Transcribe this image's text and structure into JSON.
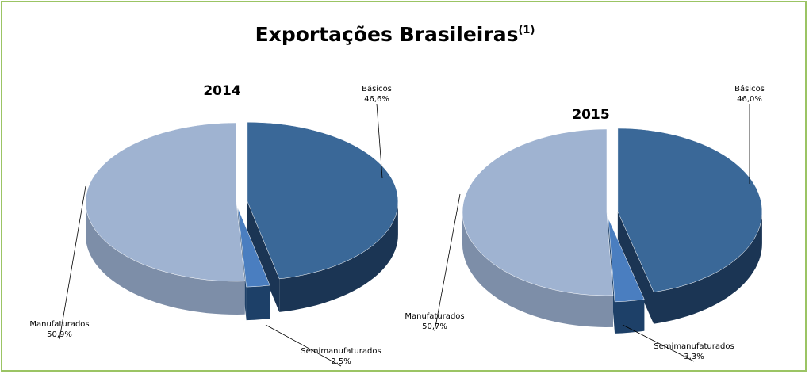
{
  "title": "Exportações Brasileiras",
  "title_superscript": "(1)",
  "chart_data": [
    {
      "type": "pie",
      "title": "2014",
      "categories": [
        "Básicos",
        "Semimanufaturados",
        "Manufaturados"
      ],
      "values": [
        46.6,
        2.5,
        50.9
      ],
      "value_labels": [
        "46,6%",
        "2,5%",
        "50,9%"
      ],
      "colors": [
        "#3a6898",
        "#4a7ec0",
        "#9fb3d1"
      ]
    },
    {
      "type": "pie",
      "title": "2015",
      "categories": [
        "Básicos",
        "Semimanufaturados",
        "Manufaturados"
      ],
      "values": [
        46.0,
        3.3,
        50.7
      ],
      "value_labels": [
        "46,0%",
        "3,3%",
        "50,7%"
      ],
      "colors": [
        "#3a6898",
        "#4a7ec0",
        "#9fb3d1"
      ]
    }
  ]
}
